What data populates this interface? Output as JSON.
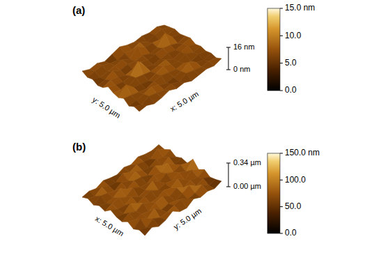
{
  "chart_data": [
    {
      "type": "surface",
      "title": "(a)",
      "xlabel": "x: 5.0 µm",
      "ylabel": "y: 5.0 µm",
      "zlim": [
        0,
        16
      ],
      "zticks": [
        {
          "value": 0,
          "label": "0 nm"
        },
        {
          "value": 16,
          "label": "16 nm"
        }
      ],
      "colorbar": {
        "range": [
          0,
          15
        ],
        "ticks": [
          {
            "value": 0,
            "label": "0.0"
          },
          {
            "value": 5,
            "label": "5.0"
          },
          {
            "value": 10,
            "label": "10.0"
          },
          {
            "value": 15,
            "label": "15.0 nm"
          }
        ]
      },
      "z": [
        [
          6,
          7,
          5,
          8,
          6,
          7,
          9,
          6,
          5,
          7,
          6,
          8
        ],
        [
          7,
          5,
          6,
          7,
          12,
          6,
          7,
          8,
          6,
          5,
          7,
          6
        ],
        [
          5,
          8,
          7,
          6,
          7,
          5,
          6,
          7,
          9,
          6,
          8,
          7
        ],
        [
          6,
          7,
          9,
          5,
          6,
          8,
          7,
          5,
          6,
          7,
          6,
          5
        ],
        [
          8,
          6,
          7,
          7,
          5,
          7,
          14,
          6,
          7,
          8,
          5,
          7
        ],
        [
          6,
          7,
          5,
          8,
          7,
          6,
          7,
          8,
          6,
          5,
          7,
          9
        ],
        [
          7,
          5,
          6,
          7,
          9,
          7,
          5,
          6,
          7,
          11,
          6,
          7
        ],
        [
          5,
          8,
          7,
          6,
          7,
          8,
          6,
          7,
          5,
          7,
          8,
          6
        ],
        [
          6,
          7,
          10,
          7,
          6,
          5,
          7,
          8,
          6,
          7,
          5,
          7
        ],
        [
          7,
          6,
          7,
          5,
          8,
          7,
          6,
          7,
          13,
          6,
          7,
          6
        ],
        [
          6,
          7,
          5,
          7,
          6,
          8,
          7,
          5,
          7,
          6,
          8,
          7
        ],
        [
          8,
          6,
          7,
          6,
          7,
          6,
          8,
          7,
          6,
          7,
          6,
          5
        ]
      ]
    },
    {
      "type": "surface",
      "title": "(b)",
      "xlabel": "x: 5.0 µm",
      "ylabel": "y: 5.0 µm",
      "zlim": [
        0,
        340
      ],
      "zticks": [
        {
          "value": 0,
          "label": "0.00 µm"
        },
        {
          "value": 340,
          "label": "0.34 µm"
        }
      ],
      "colorbar": {
        "range": [
          0,
          150
        ],
        "ticks": [
          {
            "value": 0,
            "label": "0.0"
          },
          {
            "value": 50,
            "label": "50.0"
          },
          {
            "value": 100,
            "label": "100.0"
          },
          {
            "value": 150,
            "label": "150.0 nm"
          }
        ]
      },
      "z": [
        [
          40,
          90,
          35,
          60,
          120,
          45,
          30,
          95,
          50,
          70,
          40,
          80
        ],
        [
          70,
          30,
          100,
          45,
          55,
          85,
          110,
          40,
          60,
          115,
          35,
          55
        ],
        [
          35,
          115,
          50,
          130,
          40,
          60,
          35,
          75,
          125,
          45,
          90,
          40
        ],
        [
          90,
          45,
          70,
          35,
          95,
          120,
          50,
          105,
          40,
          80,
          55,
          100
        ],
        [
          40,
          100,
          55,
          110,
          45,
          35,
          90,
          55,
          120,
          35,
          110,
          50
        ],
        [
          60,
          35,
          120,
          50,
          85,
          105,
          40,
          70,
          45,
          95,
          40,
          150
        ],
        [
          110,
          55,
          40,
          95,
          30,
          60,
          125,
          45,
          100,
          50,
          85,
          45
        ],
        [
          45,
          85,
          105,
          45,
          115,
          50,
          35,
          90,
          60,
          130,
          40,
          70
        ],
        [
          75,
          40,
          55,
          120,
          40,
          95,
          80,
          40,
          110,
          45,
          100,
          35
        ],
        [
          35,
          100,
          70,
          35,
          90,
          45,
          115,
          60,
          35,
          85,
          50,
          90
        ],
        [
          80,
          45,
          110,
          60,
          40,
          105,
          50,
          95,
          70,
          40,
          120,
          45
        ],
        [
          50,
          70,
          40,
          85,
          55,
          35,
          75,
          45,
          90,
          60,
          45,
          65
        ]
      ]
    }
  ]
}
